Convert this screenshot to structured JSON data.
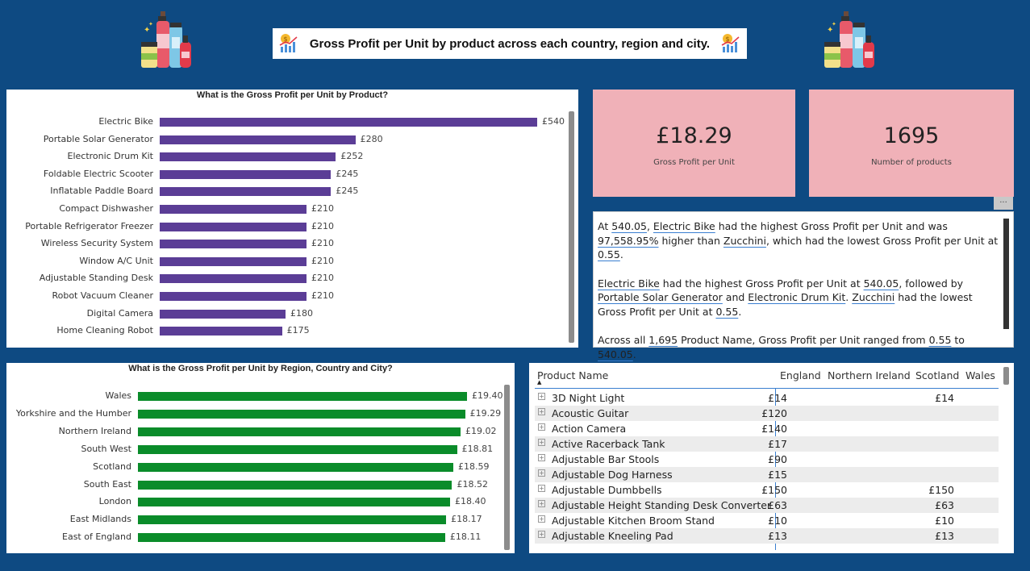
{
  "header": {
    "title": "Gross Profit per Unit by product across each country, region and city."
  },
  "colors": {
    "background": "#0e4a82",
    "product_bar": "#5b3d96",
    "region_bar": "#0a8c2a",
    "kpi_bg": "#f0b1b8"
  },
  "product_chart": {
    "title": "What is the Gross Profit per Unit by Product?",
    "chart_data": {
      "type": "bar",
      "orientation": "horizontal",
      "title": "What is the Gross Profit per Unit by Product?",
      "categories": [
        "Electric Bike",
        "Portable Solar Generator",
        "Electronic Drum Kit",
        "Foldable Electric Scooter",
        "Inflatable Paddle Board",
        "Compact Dishwasher",
        "Portable Refrigerator Freezer",
        "Wireless Security System",
        "Window A/C Unit",
        "Adjustable Standing Desk",
        "Robot Vacuum Cleaner",
        "Digital Camera",
        "Home Cleaning Robot"
      ],
      "values": [
        540,
        280,
        252,
        245,
        245,
        210,
        210,
        210,
        210,
        210,
        210,
        180,
        175
      ],
      "labels": [
        "£540",
        "£280",
        "£252",
        "£245",
        "£245",
        "£210",
        "£210",
        "£210",
        "£210",
        "£210",
        "£210",
        "£180",
        "£175"
      ],
      "xlim": [
        0,
        540
      ]
    }
  },
  "region_chart": {
    "title": "What is the Gross Profit per Unit by Region, Country and City?",
    "chart_data": {
      "type": "bar",
      "orientation": "horizontal",
      "title": "What is the Gross Profit per Unit by Region, Country and City?",
      "categories": [
        "Wales",
        "Yorkshire and the Humber",
        "Northern Ireland",
        "South West",
        "Scotland",
        "South East",
        "London",
        "East Midlands",
        "East of England"
      ],
      "values": [
        19.4,
        19.29,
        19.02,
        18.81,
        18.59,
        18.52,
        18.4,
        18.17,
        18.11
      ],
      "labels": [
        "£19.40",
        "£19.29",
        "£19.02",
        "£18.81",
        "£18.59",
        "£18.52",
        "£18.40",
        "£18.17",
        "£18.11"
      ],
      "xlim": [
        0,
        19.4
      ]
    }
  },
  "kpis": [
    {
      "value": "£18.29",
      "label": "Gross Profit per Unit"
    },
    {
      "value": "1695",
      "label": "Number of products"
    }
  ],
  "more_options": "...",
  "narrative": {
    "p1": {
      "t0": "At ",
      "v0": "540.05",
      "t1": ", ",
      "v1": "Electric Bike",
      "t2": " had the highest Gross Profit per Unit and was ",
      "v2": "97,558.95%",
      "t3": " higher than ",
      "v3": "Zucchini",
      "t4": ", which had the lowest Gross Profit per Unit at ",
      "v4": "0.55",
      "t5": "."
    },
    "p2": {
      "v0": "Electric Bike",
      "t0": " had the highest Gross Profit per Unit at ",
      "v1": "540.05",
      "t1": ", followed by ",
      "v2": "Portable Solar Generator",
      "t2": " and ",
      "v3": "Electronic Drum Kit",
      "t3": ". ",
      "v4": "Zucchini",
      "t4": " had the lowest Gross Profit per Unit at ",
      "v5": "0.55",
      "t5": "."
    },
    "p3": {
      "t0": "Across all ",
      "v0": "1,695",
      "t1": " Product Name, Gross Profit per Unit ranged from ",
      "v1": "0.55",
      "t2": " to ",
      "v2": "540.05",
      "t3": "."
    }
  },
  "matrix": {
    "columns": [
      "Product Name",
      "England",
      "Northern Ireland",
      "Scotland",
      "Wales"
    ],
    "sort_indicator": "▲",
    "expand_symbol": "+",
    "rows": [
      {
        "name": "3D Night Light",
        "england": "£14",
        "ni": "",
        "scotland": "£14",
        "wales": ""
      },
      {
        "name": "Acoustic Guitar",
        "england": "£120",
        "ni": "",
        "scotland": "",
        "wales": ""
      },
      {
        "name": "Action Camera",
        "england": "£140",
        "ni": "",
        "scotland": "",
        "wales": ""
      },
      {
        "name": "Active Racerback Tank",
        "england": "£17",
        "ni": "",
        "scotland": "",
        "wales": ""
      },
      {
        "name": "Adjustable Bar Stools",
        "england": "£90",
        "ni": "",
        "scotland": "",
        "wales": ""
      },
      {
        "name": "Adjustable Dog Harness",
        "england": "£15",
        "ni": "",
        "scotland": "",
        "wales": ""
      },
      {
        "name": "Adjustable Dumbbells",
        "england": "£150",
        "ni": "",
        "scotland": "£150",
        "wales": ""
      },
      {
        "name": "Adjustable Height Standing Desk Converter",
        "england": "£63",
        "ni": "",
        "scotland": "£63",
        "wales": ""
      },
      {
        "name": "Adjustable Kitchen Broom Stand",
        "england": "£10",
        "ni": "",
        "scotland": "£10",
        "wales": ""
      },
      {
        "name": "Adjustable Kneeling Pad",
        "england": "£13",
        "ni": "",
        "scotland": "£13",
        "wales": ""
      }
    ]
  }
}
